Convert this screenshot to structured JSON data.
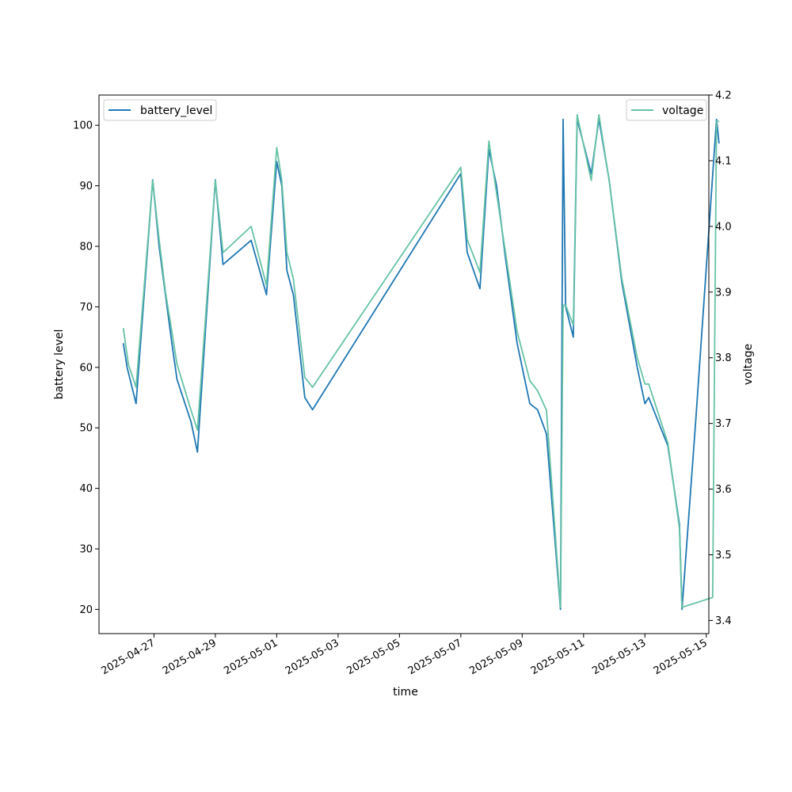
{
  "chart_data": {
    "type": "line",
    "title": "",
    "xlabel": "time",
    "ylabel_left": "battery level",
    "ylabel_right": "voltage",
    "grid": false,
    "x_ticks": [
      "2025-04-27",
      "2025-04-29",
      "2025-05-01",
      "2025-05-03",
      "2025-05-05",
      "2025-05-07",
      "2025-05-09",
      "2025-05-11",
      "2025-05-13",
      "2025-05-15"
    ],
    "xlim": [
      "2025-04-25T05:00",
      "2025-05-15T02:00"
    ],
    "y_left_ticks": [
      20,
      30,
      40,
      50,
      60,
      70,
      80,
      90,
      100
    ],
    "ylim_left": [
      16,
      105
    ],
    "y_right_ticks": [
      3.4,
      3.5,
      3.6,
      3.7,
      3.8,
      3.9,
      4.0,
      4.1,
      4.2
    ],
    "ylim_right": [
      3.38,
      4.2
    ],
    "legend_left": {
      "position": "upper-left",
      "label": "battery_level"
    },
    "legend_right": {
      "position": "upper-right",
      "label": "voltage"
    },
    "series": [
      {
        "name": "battery_level",
        "axis": "left",
        "color": "#1f77b4",
        "points": [
          [
            "2025-04-26T00:00",
            64
          ],
          [
            "2025-04-26T03:00",
            60
          ],
          [
            "2025-04-26T10:00",
            54
          ],
          [
            "2025-04-26T23:00",
            91
          ],
          [
            "2025-04-27T04:00",
            80
          ],
          [
            "2025-04-27T09:00",
            72
          ],
          [
            "2025-04-27T14:00",
            64
          ],
          [
            "2025-04-27T18:00",
            58
          ],
          [
            "2025-04-28T05:00",
            51
          ],
          [
            "2025-04-28T10:00",
            46
          ],
          [
            "2025-04-29T00:00",
            91
          ],
          [
            "2025-04-29T06:00",
            77
          ],
          [
            "2025-04-30T04:00",
            81
          ],
          [
            "2025-04-30T16:00",
            72
          ],
          [
            "2025-05-01T00:00",
            94
          ],
          [
            "2025-05-01T04:00",
            90
          ],
          [
            "2025-05-01T08:00",
            76
          ],
          [
            "2025-05-01T13:00",
            72
          ],
          [
            "2025-05-01T22:00",
            55
          ],
          [
            "2025-05-02T04:00",
            53
          ],
          [
            "2025-05-07T00:00",
            92
          ],
          [
            "2025-05-07T05:00",
            79
          ],
          [
            "2025-05-07T15:00",
            73
          ],
          [
            "2025-05-07T22:00",
            96
          ],
          [
            "2025-05-08T04:00",
            90
          ],
          [
            "2025-05-08T11:00",
            78
          ],
          [
            "2025-05-08T20:00",
            64
          ],
          [
            "2025-05-09T06:00",
            54
          ],
          [
            "2025-05-09T12:00",
            53
          ],
          [
            "2025-05-09T19:00",
            49
          ],
          [
            "2025-05-10T06:00",
            20
          ],
          [
            "2025-05-10T08:00",
            101
          ],
          [
            "2025-05-10T10:00",
            70
          ],
          [
            "2025-05-10T16:00",
            65
          ],
          [
            "2025-05-10T19:00",
            101
          ],
          [
            "2025-05-11T06:00",
            92
          ],
          [
            "2025-05-11T12:00",
            101
          ],
          [
            "2025-05-11T20:00",
            91
          ],
          [
            "2025-05-12T06:00",
            74
          ],
          [
            "2025-05-12T18:00",
            60
          ],
          [
            "2025-05-13T00:00",
            54
          ],
          [
            "2025-05-13T03:00",
            55
          ],
          [
            "2025-05-13T18:00",
            47
          ],
          [
            "2025-05-14T03:00",
            34
          ],
          [
            "2025-05-14T05:00",
            20
          ],
          [
            "2025-05-14T16:00",
            52
          ],
          [
            "2025-05-15T08:00",
            101
          ],
          [
            "2025-05-15T10:00",
            97
          ]
        ]
      },
      {
        "name": "voltage",
        "axis": "right",
        "color": "#66c2a5",
        "points": [
          [
            "2025-04-26T00:00",
            3.845
          ],
          [
            "2025-04-26T04:00",
            3.79
          ],
          [
            "2025-04-26T10:00",
            3.755
          ],
          [
            "2025-04-26T23:00",
            4.07
          ],
          [
            "2025-04-27T04:00",
            3.98
          ],
          [
            "2025-04-27T09:00",
            3.9
          ],
          [
            "2025-04-27T14:00",
            3.84
          ],
          [
            "2025-04-27T18:00",
            3.79
          ],
          [
            "2025-04-28T05:00",
            3.72
          ],
          [
            "2025-04-28T10:00",
            3.69
          ],
          [
            "2025-04-29T00:00",
            4.07
          ],
          [
            "2025-04-29T06:00",
            3.96
          ],
          [
            "2025-04-30T04:00",
            4.0
          ],
          [
            "2025-04-30T16:00",
            3.91
          ],
          [
            "2025-05-01T00:00",
            4.12
          ],
          [
            "2025-05-01T04:00",
            4.07
          ],
          [
            "2025-05-01T08:00",
            3.96
          ],
          [
            "2025-05-01T13:00",
            3.92
          ],
          [
            "2025-05-01T22:00",
            3.77
          ],
          [
            "2025-05-02T04:00",
            3.755
          ],
          [
            "2025-05-07T00:00",
            4.09
          ],
          [
            "2025-05-07T05:00",
            3.98
          ],
          [
            "2025-05-07T15:00",
            3.93
          ],
          [
            "2025-05-07T22:00",
            4.13
          ],
          [
            "2025-05-08T04:00",
            4.05
          ],
          [
            "2025-05-08T11:00",
            3.96
          ],
          [
            "2025-05-08T20:00",
            3.84
          ],
          [
            "2025-05-09T06:00",
            3.765
          ],
          [
            "2025-05-09T12:00",
            3.75
          ],
          [
            "2025-05-09T19:00",
            3.72
          ],
          [
            "2025-05-10T06:00",
            3.42
          ],
          [
            "2025-05-10T08:00",
            3.88
          ],
          [
            "2025-05-10T10:00",
            3.88
          ],
          [
            "2025-05-10T16:00",
            3.85
          ],
          [
            "2025-05-10T19:00",
            4.17
          ],
          [
            "2025-05-11T06:00",
            4.07
          ],
          [
            "2025-05-11T12:00",
            4.17
          ],
          [
            "2025-05-11T20:00",
            4.07
          ],
          [
            "2025-05-12T06:00",
            3.92
          ],
          [
            "2025-05-12T18:00",
            3.8
          ],
          [
            "2025-05-13T00:00",
            3.76
          ],
          [
            "2025-05-13T03:00",
            3.76
          ],
          [
            "2025-05-13T18:00",
            3.67
          ],
          [
            "2025-05-14T03:00",
            3.54
          ],
          [
            "2025-05-14T05:00",
            3.42
          ],
          [
            "2025-05-15T05:00",
            3.435
          ],
          [
            "2025-05-15T08:00",
            4.16
          ],
          [
            "2025-05-15T10:00",
            4.16
          ]
        ]
      }
    ]
  }
}
